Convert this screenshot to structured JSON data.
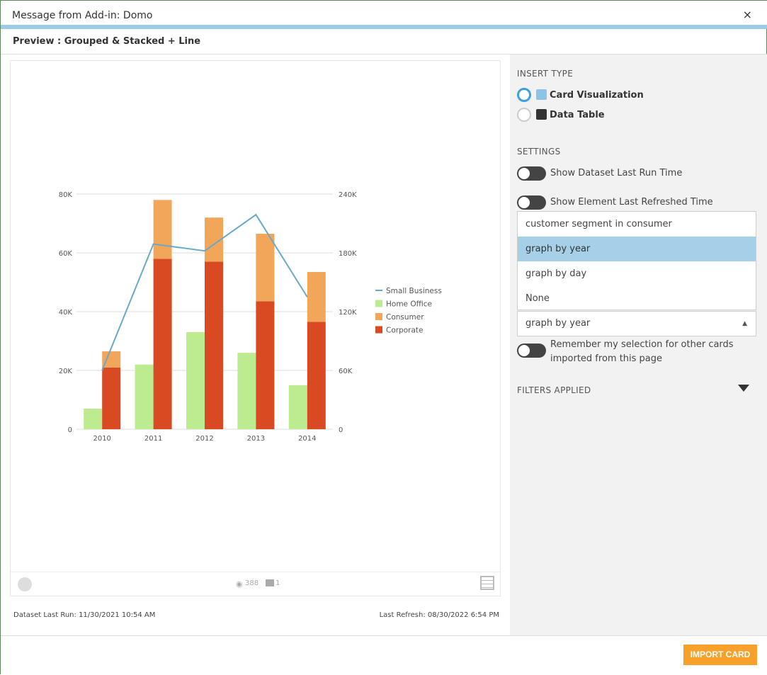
{
  "window": {
    "title": "Message from Add-in: Domo",
    "close": "×"
  },
  "preview_title": "Preview : Grouped & Stacked + Line",
  "card": {
    "views": "388",
    "comments": "1",
    "dataset_last_run": "Dataset Last Run: 11/30/2021 10:54 AM",
    "last_refresh": "Last Refresh: 08/30/2022 6:54 PM"
  },
  "panel": {
    "insert_type_label": "INSERT TYPE",
    "options": [
      {
        "label": "Card Visualization",
        "selected": true
      },
      {
        "label": "Data Table",
        "selected": false
      }
    ],
    "settings_label": "SETTINGS",
    "toggles": [
      {
        "label": "Show Dataset Last Run Time",
        "on": false
      },
      {
        "label": "Show Element Last Refreshed Time",
        "on": false
      }
    ],
    "dropdown_options": [
      "customer segment in consumer",
      "graph by year",
      "graph by day",
      "None"
    ],
    "dropdown_highlighted": "graph by year",
    "select_value": "graph by year",
    "remember_label": "Remember my selection for other cards imported from this page",
    "filters_label": "FILTERS APPLIED"
  },
  "import_button": "IMPORT CARD",
  "colors": {
    "accent": "#f7a02a",
    "selection": "#a6cfe8",
    "radio": "#3aa0e0"
  },
  "chart_data": {
    "type": "bar",
    "categories": [
      "2010",
      "2011",
      "2012",
      "2013",
      "2014"
    ],
    "left_axis": {
      "ylim": [
        0,
        80000
      ],
      "ticks": [
        "0",
        "20K",
        "40K",
        "60K",
        "80K"
      ]
    },
    "right_axis": {
      "ylim": [
        0,
        240000
      ],
      "ticks": [
        "0",
        "60K",
        "120K",
        "180K",
        "240K"
      ]
    },
    "series": [
      {
        "name": "Home Office",
        "type": "bar",
        "axis": "left",
        "color": "#bdeb8f",
        "values": [
          7000,
          22000,
          33000,
          26000,
          15000
        ]
      },
      {
        "name": "Corporate",
        "type": "stacked-bar",
        "axis": "left",
        "color": "#d94a22",
        "values": [
          21000,
          58000,
          57000,
          43500,
          36500
        ]
      },
      {
        "name": "Consumer",
        "type": "stacked-bar",
        "axis": "left",
        "color": "#f2a65a",
        "values": [
          5500,
          20000,
          15000,
          23000,
          17000
        ]
      },
      {
        "name": "Small Business",
        "type": "line",
        "axis": "right",
        "color": "#6aa8c8",
        "values": [
          60000,
          189000,
          182000,
          219000,
          135000
        ]
      }
    ],
    "legend": [
      "Small Business",
      "Home Office",
      "Consumer",
      "Corporate"
    ],
    "legend_position": "right",
    "grid": true
  }
}
